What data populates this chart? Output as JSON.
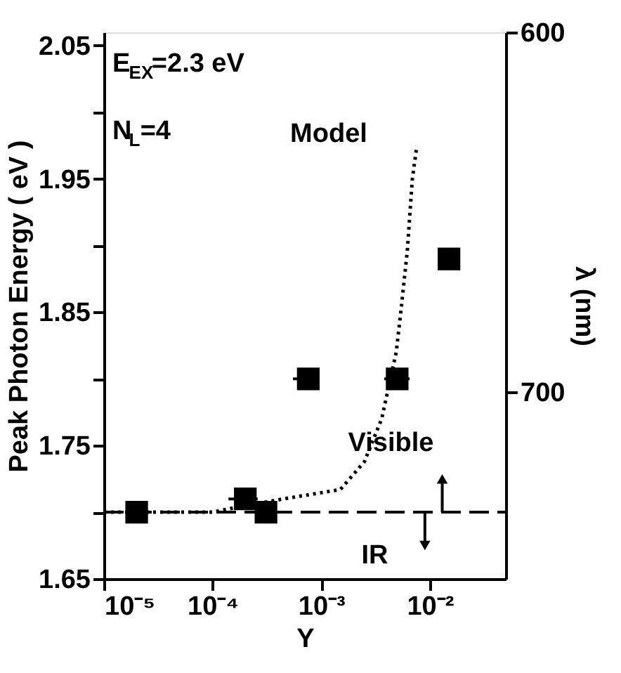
{
  "chart_data": {
    "type": "scatter",
    "xlabel": "Y",
    "ylabel": "Peak Photon Energy ( eV )",
    "y2label": "λ (nm)",
    "log": "x",
    "grid": false,
    "xlim": [
      1e-05,
      0.05
    ],
    "xticks": [
      {
        "value": 1e-05,
        "label": "10⁻⁵"
      },
      {
        "value": 0.0001,
        "label": "10⁻⁴"
      },
      {
        "value": 0.001,
        "label": "10⁻³"
      },
      {
        "value": 0.01,
        "label": "10⁻²"
      }
    ],
    "ylim": [
      1.65,
      2.06
    ],
    "yticks": [
      1.65,
      {
        "value": 1.7,
        "label": null
      },
      1.75,
      {
        "value": 1.8,
        "label": null
      },
      1.85,
      {
        "value": 1.9,
        "label": null
      },
      1.95,
      {
        "value": 2.0,
        "label": null
      },
      2.05
    ],
    "y2lim": [
      752,
      600
    ],
    "y2ticks": [
      600,
      700
    ],
    "series": [
      {
        "marker": "square",
        "color": "#000000",
        "x": [
          2e-05,
          0.0002,
          0.00031,
          0.00076,
          0.005,
          0.015
        ],
        "values": [
          1.7,
          1.71,
          1.7,
          1.8,
          1.8,
          1.89
        ],
        "xerrors": [
          null,
          [
            0.00014,
            0.00026
          ],
          null,
          [
            0.00055,
            0.0009
          ],
          [
            0.0038,
            0.0065
          ],
          [
            0.012,
            0.015
          ]
        ]
      },
      {
        "type": "line",
        "line_style": "dotted",
        "color": "#000000",
        "x": [
          1e-05,
          0.0001,
          0.0002,
          0.00045,
          0.0015,
          0.0025,
          0.0036,
          0.0049,
          0.0054,
          0.0062,
          0.0069,
          0.0076
        ],
        "values": [
          1.7,
          1.7,
          1.705,
          1.71,
          1.717,
          1.738,
          1.77,
          1.82,
          1.85,
          1.896,
          1.95,
          1.975
        ]
      }
    ],
    "ref_lines": [
      {
        "axis": "y",
        "value": 1.7,
        "line_style": "dashed",
        "color": "#000000"
      }
    ],
    "annotations": [
      "E$_{EX}$=2.3 eV",
      "N$_{L}$=4",
      "Model",
      "Visible",
      "IR"
    ]
  }
}
